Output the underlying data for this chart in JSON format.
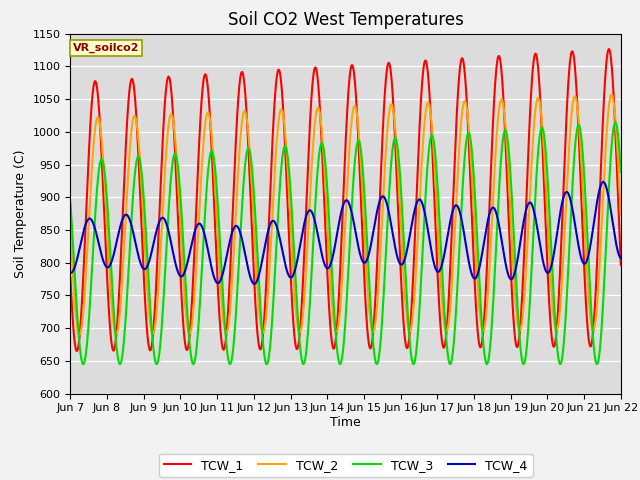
{
  "title": "Soil CO2 West Temperatures",
  "xlabel": "Time",
  "ylabel": "Soil Temperature (C)",
  "annotation": "VR_soilco2",
  "ylim": [
    600,
    1150
  ],
  "x_tick_labels": [
    "Jun 7",
    "Jun 8",
    "Jun 9",
    "Jun 10",
    "Jun 11",
    "Jun 12",
    "Jun 13",
    "Jun 14",
    "Jun 15",
    "Jun 16",
    "Jun 17",
    "Jun 18",
    "Jun 19",
    "Jun 20",
    "Jun 21",
    "Jun 22"
  ],
  "series": {
    "TCW_1": {
      "color": "#ff0000",
      "linewidth": 1.5
    },
    "TCW_2": {
      "color": "#ffa500",
      "linewidth": 1.5
    },
    "TCW_3": {
      "color": "#00dd00",
      "linewidth": 1.5
    },
    "TCW_4": {
      "color": "#0000cc",
      "linewidth": 1.5
    }
  },
  "bg_color": "#dcdcdc",
  "fig_bg": "#f2f2f2",
  "title_fontsize": 12,
  "axis_label_fontsize": 9,
  "tick_fontsize": 8
}
